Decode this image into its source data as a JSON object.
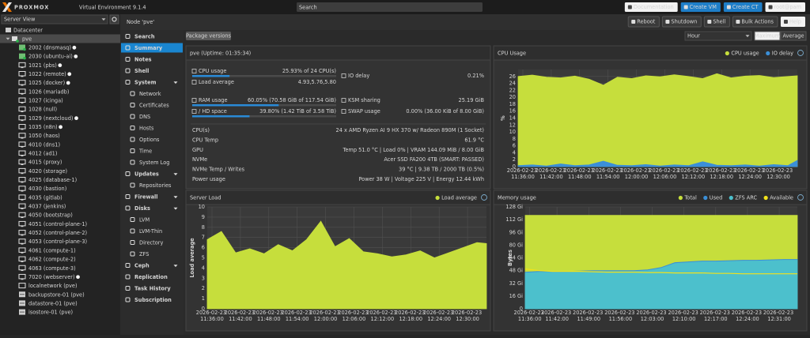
{
  "header": {
    "logo": "PROXMOX",
    "product": "Virtual Environment 9.1.4",
    "search": "Search",
    "buttons": [
      {
        "label": "Documentation",
        "style": "light"
      },
      {
        "label": "Create VM",
        "style": "primary"
      },
      {
        "label": "Create CT",
        "style": "primary"
      },
      {
        "label": "root@pam",
        "style": "light"
      }
    ]
  },
  "sidebar": {
    "view": "Server View",
    "datacenter": "Datacenter",
    "node": "pve",
    "items": [
      {
        "label": "2002 (dnsmasq)",
        "kind": "ct",
        "running": true
      },
      {
        "label": "2030 (ubuntu-ai)",
        "kind": "ct",
        "running": true
      },
      {
        "label": "1021 (pbs)",
        "kind": "vm",
        "running": true
      },
      {
        "label": "1022 (remote)",
        "kind": "vm",
        "running": true
      },
      {
        "label": "1025 (docker)",
        "kind": "vm",
        "running": true
      },
      {
        "label": "1026 (mariadb)",
        "kind": "vm",
        "running": false
      },
      {
        "label": "1027 (icinga)",
        "kind": "vm",
        "running": false
      },
      {
        "label": "1028 (null)",
        "kind": "vm",
        "running": false
      },
      {
        "label": "1029 (nextcloud)",
        "kind": "vm",
        "running": true
      },
      {
        "label": "1035 (n8n)",
        "kind": "vm",
        "running": true
      },
      {
        "label": "1050 (haos)",
        "kind": "vm",
        "running": false
      },
      {
        "label": "4010 (dns1)",
        "kind": "vm",
        "running": false
      },
      {
        "label": "4012 (ad1)",
        "kind": "vm",
        "running": false
      },
      {
        "label": "4015 (proxy)",
        "kind": "vm",
        "running": false
      },
      {
        "label": "4020 (storage)",
        "kind": "vm",
        "running": false
      },
      {
        "label": "4025 (database-1)",
        "kind": "vm",
        "running": false
      },
      {
        "label": "4030 (bastion)",
        "kind": "vm",
        "running": false
      },
      {
        "label": "4035 (gitlab)",
        "kind": "vm",
        "running": false
      },
      {
        "label": "4037 (jenkins)",
        "kind": "vm",
        "running": false
      },
      {
        "label": "4050 (bootstrap)",
        "kind": "vm",
        "running": false
      },
      {
        "label": "4051 (control-plane-1)",
        "kind": "vm",
        "running": false
      },
      {
        "label": "4052 (control-plane-2)",
        "kind": "vm",
        "running": false
      },
      {
        "label": "4053 (control-plane-3)",
        "kind": "vm",
        "running": false
      },
      {
        "label": "4061 (compute-1)",
        "kind": "vm",
        "running": false
      },
      {
        "label": "4062 (compute-2)",
        "kind": "vm",
        "running": false
      },
      {
        "label": "4063 (compute-3)",
        "kind": "vm",
        "running": false
      },
      {
        "label": "7020 (webserver)",
        "kind": "vm",
        "running": true
      },
      {
        "label": "localnetwork (pve)",
        "kind": "network",
        "running": false
      },
      {
        "label": "backupstore-01 (pve)",
        "kind": "storage",
        "running": false
      },
      {
        "label": "datastore-01 (pve)",
        "kind": "storage",
        "running": false
      },
      {
        "label": "isostore-01 (pve)",
        "kind": "storage",
        "running": false
      }
    ]
  },
  "nav": {
    "items": [
      {
        "label": "Search",
        "level": 0
      },
      {
        "label": "Summary",
        "level": 0,
        "selected": true
      },
      {
        "label": "Notes",
        "level": 0
      },
      {
        "label": "Shell",
        "level": 0
      },
      {
        "label": "System",
        "level": 0,
        "expandable": true
      },
      {
        "label": "Network",
        "level": 1
      },
      {
        "label": "Certificates",
        "level": 1
      },
      {
        "label": "DNS",
        "level": 1
      },
      {
        "label": "Hosts",
        "level": 1
      },
      {
        "label": "Options",
        "level": 1
      },
      {
        "label": "Time",
        "level": 1
      },
      {
        "label": "System Log",
        "level": 1
      },
      {
        "label": "Updates",
        "level": 0,
        "expandable": true
      },
      {
        "label": "Repositories",
        "level": 1
      },
      {
        "label": "Firewall",
        "level": 0,
        "expandable": true
      },
      {
        "label": "Disks",
        "level": 0,
        "expandable": true
      },
      {
        "label": "LVM",
        "level": 1
      },
      {
        "label": "LVM-Thin",
        "level": 1
      },
      {
        "label": "Directory",
        "level": 1
      },
      {
        "label": "ZFS",
        "level": 1
      },
      {
        "label": "Ceph",
        "level": 0,
        "expandable": true
      },
      {
        "label": "Replication",
        "level": 0
      },
      {
        "label": "Task History",
        "level": 0
      },
      {
        "label": "Subscription",
        "level": 0
      }
    ]
  },
  "toolbar": {
    "title": "Node 'pve'",
    "buttons": [
      {
        "label": "Reboot",
        "style": "dark"
      },
      {
        "label": "Shutdown",
        "style": "dark"
      },
      {
        "label": "Shell",
        "style": "dark"
      },
      {
        "label": "Bulk Actions",
        "style": "dark"
      },
      {
        "label": "Help",
        "style": "light"
      }
    ]
  },
  "subbar": {
    "package_versions": "Package versions",
    "timeframe": "Hour",
    "modes": [
      "Maximum",
      "Average"
    ]
  },
  "status": {
    "title": "pve (Uptime: 01:35:34)",
    "usage": [
      {
        "label": "CPU usage",
        "value": "25.93% of 24 CPU(s)",
        "percent": 25.93
      },
      {
        "label": "IO delay",
        "value": "0.21%"
      },
      {
        "label": "Load average",
        "value": "4.93,5.76,5.80"
      },
      {
        "label": "RAM usage",
        "value": "60.05% (70.58 GiB of 117.54 GiB)",
        "percent": 60.05
      },
      {
        "label": "KSM sharing",
        "value": "25.19 GiB"
      },
      {
        "label": "/ HD space",
        "value": "39.80% (1.42 TiB of 3.58 TiB)",
        "percent": 39.8
      },
      {
        "label": "SWAP usage",
        "value": "0.00% (36.00 KiB of 8.00 GiB)"
      }
    ],
    "details": [
      {
        "label": "CPU(s)",
        "value": "24 x AMD Ryzen AI 9 HX 370 w/ Radeon 890M (1 Socket)"
      },
      {
        "label": "CPU Temp",
        "value": "61.9 °C"
      },
      {
        "label": "GPU",
        "value": "Temp 51.0 °C | Load 0% | VRAM 144.09 MiB / 8.00 GiB"
      },
      {
        "label": "NVMe",
        "value": "Acer SSD FA200 4TB (SMART: PASSED)"
      },
      {
        "label": "NVMe Temp / Writes",
        "value": "39 °C | 9.38 TB / 2000 TB (0.5%)"
      },
      {
        "label": "Power usage",
        "value": "Power 38 W | Voltage 225 V | Energy 12.44 kWh"
      }
    ]
  },
  "chart_data": [
    {
      "type": "area",
      "title": "CPU Usage",
      "ylabel": "%",
      "x": [
        "2026-02-23 11:35:00",
        "2026-02-23 11:38:00",
        "2026-02-23 11:41:00",
        "2026-02-23 11:44:00",
        "2026-02-23 11:47:00",
        "2026-02-23 11:50:00",
        "2026-02-23 11:53:00",
        "2026-02-23 11:56:00",
        "2026-02-23 11:59:00",
        "2026-02-23 12:02:00",
        "2026-02-23 12:05:00",
        "2026-02-23 12:08:00",
        "2026-02-23 12:11:00",
        "2026-02-23 12:14:00",
        "2026-02-23 12:17:00",
        "2026-02-23 12:20:00",
        "2026-02-23 12:23:00",
        "2026-02-23 12:26:00",
        "2026-02-23 12:29:00",
        "2026-02-23 12:32:00",
        "2026-02-23 12:34:00"
      ],
      "xlim": [
        "2026-02-23 11:35:00",
        "2026-02-23 12:34:00"
      ],
      "xticks": [
        "2026-02-23 11:36:00",
        "2026-02-23 11:42:00",
        "2026-02-23 11:48:00",
        "2026-02-23 11:54:00",
        "2026-02-23 12:00:00",
        "2026-02-23 12:06:00",
        "2026-02-23 12:12:00",
        "2026-02-23 12:18:00",
        "2026-02-23 12:24:00",
        "2026-02-23 12:30:00"
      ],
      "ylim": [
        0,
        28
      ],
      "yticks": [
        0,
        2,
        4,
        6,
        8,
        10,
        12,
        14,
        16,
        18,
        20,
        22,
        24,
        26
      ],
      "grid": true,
      "series": [
        {
          "name": "CPU usage",
          "color": "#c6de3c",
          "style": "area",
          "values": [
            26,
            26.4,
            25.8,
            25.6,
            26.1,
            25.2,
            23.5,
            25.8,
            25.4,
            26.2,
            25.9,
            26.5,
            26,
            25.4,
            26.8,
            25.6,
            26.1,
            26.3,
            25.7,
            26,
            26.2
          ]
        },
        {
          "name": "IO delay",
          "color": "#3b8fd8",
          "style": "area",
          "values": [
            0.3,
            0.5,
            0.2,
            0.8,
            0.3,
            0.5,
            1.6,
            0.4,
            0.3,
            0.6,
            0.2,
            0.5,
            0.3,
            1.4,
            0.4,
            0.3,
            0.5,
            0.2,
            0.6,
            0.3,
            1.8
          ]
        }
      ]
    },
    {
      "type": "area",
      "title": "Server Load",
      "ylabel": "Load average",
      "x": [
        "2026-02-23 11:35:00",
        "2026-02-23 11:38:00",
        "2026-02-23 11:41:00",
        "2026-02-23 11:44:00",
        "2026-02-23 11:47:00",
        "2026-02-23 11:50:00",
        "2026-02-23 11:53:00",
        "2026-02-23 11:56:00",
        "2026-02-23 11:59:00",
        "2026-02-23 12:02:00",
        "2026-02-23 12:05:00",
        "2026-02-23 12:08:00",
        "2026-02-23 12:11:00",
        "2026-02-23 12:14:00",
        "2026-02-23 12:17:00",
        "2026-02-23 12:20:00",
        "2026-02-23 12:23:00",
        "2026-02-23 12:26:00",
        "2026-02-23 12:29:00",
        "2026-02-23 12:32:00",
        "2026-02-23 12:34:00"
      ],
      "xlim": [
        "2026-02-23 11:35:00",
        "2026-02-23 12:34:00"
      ],
      "xticks": [
        "2026-02-23 11:36:00",
        "2026-02-23 11:42:00",
        "2026-02-23 11:48:00",
        "2026-02-23 11:54:00",
        "2026-02-23 12:00:00",
        "2026-02-23 12:06:00",
        "2026-02-23 12:12:00",
        "2026-02-23 12:18:00",
        "2026-02-23 12:24:00",
        "2026-02-23 12:30:00"
      ],
      "ylim": [
        0,
        10
      ],
      "yticks": [
        0,
        1,
        2,
        3,
        4,
        5,
        6,
        7,
        8,
        9,
        10
      ],
      "grid": true,
      "series": [
        {
          "name": "Load average",
          "color": "#c6de3c",
          "style": "area",
          "values": [
            6.8,
            7.6,
            5.5,
            5.9,
            5.4,
            6.3,
            5.7,
            6.8,
            8.6,
            6.1,
            6.9,
            5.6,
            5.4,
            5.1,
            5.3,
            5.7,
            5,
            5.5,
            6,
            6.5,
            6.4
          ]
        }
      ]
    },
    {
      "type": "area",
      "title": "Memory usage",
      "ylabel": "Bytes",
      "x": [
        "2026-02-23 11:35:00",
        "2026-02-23 11:38:00",
        "2026-02-23 11:41:00",
        "2026-02-23 11:44:00",
        "2026-02-23 11:47:00",
        "2026-02-23 11:50:00",
        "2026-02-23 11:53:00",
        "2026-02-23 11:56:00",
        "2026-02-23 11:59:00",
        "2026-02-23 12:02:00",
        "2026-02-23 12:05:00",
        "2026-02-23 12:08:00",
        "2026-02-23 12:11:00",
        "2026-02-23 12:14:00",
        "2026-02-23 12:17:00",
        "2026-02-23 12:20:00",
        "2026-02-23 12:23:00",
        "2026-02-23 12:26:00",
        "2026-02-23 12:29:00",
        "2026-02-23 12:32:00",
        "2026-02-23 12:35:00"
      ],
      "xlim": [
        "2026-02-23 11:35:00",
        "2026-02-23 12:35:00"
      ],
      "xticks": [
        "2026-02-23 11:36:00",
        "2026-02-23 11:42:00",
        "2026-02-23 11:49:00",
        "2026-02-23 11:56:00",
        "2026-02-23 12:03:00",
        "2026-02-23 12:10:00",
        "2026-02-23 12:17:00",
        "2026-02-23 12:24:00",
        "2026-02-23 12:31:00"
      ],
      "ylim": [
        0,
        128
      ],
      "yticks": [
        0,
        {
          "value": 16,
          "label": "16 Gi"
        },
        {
          "value": 32,
          "label": "32 Gi"
        },
        {
          "value": 48,
          "label": "48 Gi"
        },
        {
          "value": 64,
          "label": "64 Gi"
        },
        {
          "value": 80,
          "label": "80 Gi"
        },
        {
          "value": 96,
          "label": "96 Gi"
        },
        {
          "value": 112,
          "label": "112 Gi"
        },
        {
          "value": 128,
          "label": "128 Gi"
        }
      ],
      "grid": true,
      "series": [
        {
          "name": "Total",
          "color": "#c6de3c",
          "style": "area",
          "values": [
            117.5,
            117.5,
            117.5,
            117.5,
            117.5,
            117.5,
            117.5,
            117.5,
            117.5,
            117.5,
            117.5,
            117.5,
            117.5,
            117.5,
            117.5,
            117.5,
            117.5,
            117.5,
            117.5,
            117.5,
            117.5
          ]
        },
        {
          "name": "Used",
          "color": "#3b8fd8",
          "style": "area",
          "values": [
            46,
            47,
            47,
            47,
            47.5,
            48,
            48,
            48,
            48,
            49,
            52,
            58,
            59,
            60,
            60,
            60.5,
            61,
            61,
            61.5,
            62,
            62
          ]
        },
        {
          "name": "ZFS ARC",
          "color": "#4cc0cc",
          "style": "area",
          "values": [
            45,
            46,
            46,
            46,
            46.5,
            47,
            47,
            47,
            47,
            48,
            51,
            57,
            58,
            59,
            59,
            59.5,
            60,
            60,
            60.5,
            61,
            61
          ]
        },
        {
          "name": "Available",
          "color": "#f2e21a",
          "style": "line",
          "values": [
            50,
            48,
            47,
            47,
            47,
            46.5,
            46,
            46,
            46,
            45.5,
            45.5,
            45,
            45,
            45,
            44.5,
            44.5,
            44,
            44,
            44,
            44,
            44
          ]
        }
      ]
    }
  ]
}
